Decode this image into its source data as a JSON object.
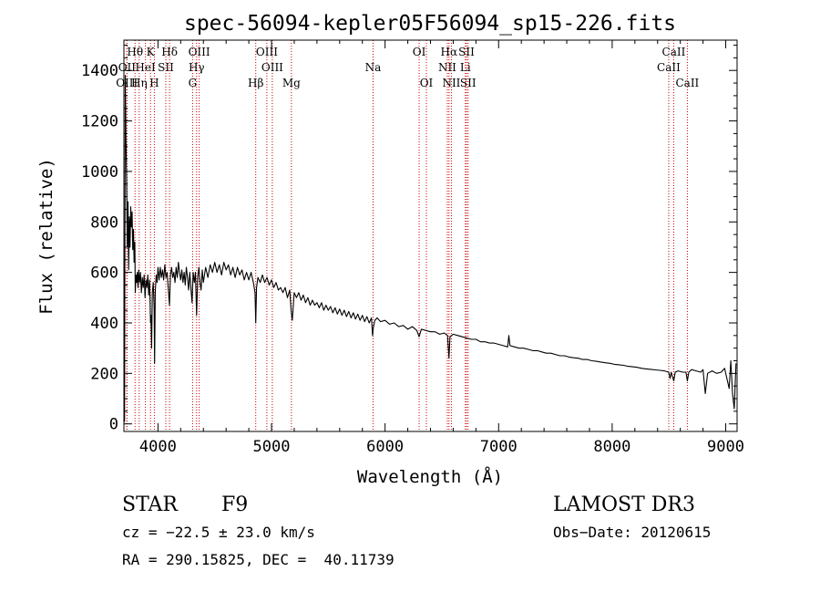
{
  "chart_data": {
    "type": "line",
    "title": "spec-56094-kepler05F56094_sp15-226.fits",
    "xlabel": "Wavelength (Å)",
    "ylabel": "Flux (relative)",
    "xlim": [
      3700,
      9100
    ],
    "ylim": [
      -30,
      1520
    ],
    "x_ticks": [
      4000,
      5000,
      6000,
      7000,
      8000,
      9000
    ],
    "y_ticks": [
      0,
      200,
      400,
      600,
      800,
      1000,
      1200,
      1400
    ],
    "grid": false,
    "series": [
      {
        "name": "flux",
        "color": "#000000",
        "points": [
          [
            3700,
            120
          ],
          [
            3706,
            10
          ],
          [
            3712,
            1380
          ],
          [
            3718,
            1130
          ],
          [
            3724,
            980
          ],
          [
            3730,
            700
          ],
          [
            3736,
            880
          ],
          [
            3742,
            610
          ],
          [
            3748,
            820
          ],
          [
            3754,
            700
          ],
          [
            3760,
            860
          ],
          [
            3766,
            780
          ],
          [
            3772,
            840
          ],
          [
            3778,
            690
          ],
          [
            3784,
            770
          ],
          [
            3790,
            640
          ],
          [
            3796,
            720
          ],
          [
            3800,
            520
          ],
          [
            3806,
            590
          ],
          [
            3812,
            560
          ],
          [
            3818,
            600
          ],
          [
            3824,
            540
          ],
          [
            3830,
            610
          ],
          [
            3838,
            560
          ],
          [
            3846,
            600
          ],
          [
            3854,
            520
          ],
          [
            3862,
            580
          ],
          [
            3870,
            540
          ],
          [
            3878,
            590
          ],
          [
            3886,
            500
          ],
          [
            3894,
            570
          ],
          [
            3902,
            540
          ],
          [
            3910,
            590
          ],
          [
            3918,
            510
          ],
          [
            3926,
            570
          ],
          [
            3934,
            400
          ],
          [
            3938,
            430
          ],
          [
            3944,
            300
          ],
          [
            3950,
            520
          ],
          [
            3958,
            560
          ],
          [
            3966,
            460
          ],
          [
            3970,
            240
          ],
          [
            3976,
            520
          ],
          [
            3984,
            590
          ],
          [
            3992,
            560
          ],
          [
            4000,
            620
          ],
          [
            4010,
            570
          ],
          [
            4020,
            620
          ],
          [
            4030,
            580
          ],
          [
            4040,
            610
          ],
          [
            4050,
            570
          ],
          [
            4060,
            630
          ],
          [
            4070,
            580
          ],
          [
            4080,
            600
          ],
          [
            4090,
            540
          ],
          [
            4101,
            470
          ],
          [
            4110,
            590
          ],
          [
            4120,
            620
          ],
          [
            4130,
            580
          ],
          [
            4140,
            600
          ],
          [
            4150,
            560
          ],
          [
            4160,
            620
          ],
          [
            4170,
            580
          ],
          [
            4180,
            640
          ],
          [
            4190,
            600
          ],
          [
            4200,
            570
          ],
          [
            4210,
            610
          ],
          [
            4220,
            560
          ],
          [
            4230,
            600
          ],
          [
            4240,
            550
          ],
          [
            4250,
            620
          ],
          [
            4260,
            580
          ],
          [
            4270,
            530
          ],
          [
            4280,
            600
          ],
          [
            4290,
            540
          ],
          [
            4300,
            480
          ],
          [
            4310,
            600
          ],
          [
            4320,
            560
          ],
          [
            4330,
            600
          ],
          [
            4340,
            430
          ],
          [
            4350,
            580
          ],
          [
            4360,
            620
          ],
          [
            4370,
            560
          ],
          [
            4380,
            530
          ],
          [
            4390,
            610
          ],
          [
            4400,
            560
          ],
          [
            4420,
            620
          ],
          [
            4440,
            580
          ],
          [
            4460,
            630
          ],
          [
            4480,
            600
          ],
          [
            4500,
            640
          ],
          [
            4520,
            600
          ],
          [
            4540,
            630
          ],
          [
            4560,
            590
          ],
          [
            4580,
            640
          ],
          [
            4600,
            610
          ],
          [
            4620,
            630
          ],
          [
            4640,
            590
          ],
          [
            4660,
            620
          ],
          [
            4680,
            580
          ],
          [
            4700,
            620
          ],
          [
            4720,
            590
          ],
          [
            4740,
            610
          ],
          [
            4760,
            570
          ],
          [
            4780,
            600
          ],
          [
            4800,
            570
          ],
          [
            4820,
            600
          ],
          [
            4840,
            560
          ],
          [
            4855,
            520
          ],
          [
            4861,
            400
          ],
          [
            4868,
            540
          ],
          [
            4880,
            580
          ],
          [
            4900,
            560
          ],
          [
            4920,
            590
          ],
          [
            4940,
            560
          ],
          [
            4960,
            580
          ],
          [
            4980,
            550
          ],
          [
            5000,
            570
          ],
          [
            5020,
            540
          ],
          [
            5040,
            560
          ],
          [
            5060,
            530
          ],
          [
            5080,
            540
          ],
          [
            5100,
            520
          ],
          [
            5120,
            540
          ],
          [
            5140,
            500
          ],
          [
            5160,
            530
          ],
          [
            5172,
            450
          ],
          [
            5183,
            410
          ],
          [
            5200,
            520
          ],
          [
            5220,
            500
          ],
          [
            5240,
            520
          ],
          [
            5260,
            490
          ],
          [
            5280,
            510
          ],
          [
            5300,
            480
          ],
          [
            5320,
            500
          ],
          [
            5340,
            470
          ],
          [
            5360,
            490
          ],
          [
            5380,
            470
          ],
          [
            5400,
            480
          ],
          [
            5420,
            460
          ],
          [
            5440,
            480
          ],
          [
            5460,
            450
          ],
          [
            5480,
            470
          ],
          [
            5500,
            450
          ],
          [
            5520,
            465
          ],
          [
            5540,
            440
          ],
          [
            5560,
            460
          ],
          [
            5580,
            435
          ],
          [
            5600,
            455
          ],
          [
            5620,
            430
          ],
          [
            5640,
            450
          ],
          [
            5660,
            425
          ],
          [
            5680,
            445
          ],
          [
            5700,
            420
          ],
          [
            5720,
            440
          ],
          [
            5740,
            415
          ],
          [
            5760,
            435
          ],
          [
            5780,
            410
          ],
          [
            5800,
            430
          ],
          [
            5820,
            405
          ],
          [
            5840,
            425
          ],
          [
            5860,
            400
          ],
          [
            5880,
            420
          ],
          [
            5890,
            350
          ],
          [
            5896,
            380
          ],
          [
            5910,
            410
          ],
          [
            5930,
            420
          ],
          [
            5960,
            405
          ],
          [
            6000,
            410
          ],
          [
            6040,
            395
          ],
          [
            6080,
            400
          ],
          [
            6120,
            385
          ],
          [
            6160,
            390
          ],
          [
            6200,
            375
          ],
          [
            6240,
            385
          ],
          [
            6280,
            370
          ],
          [
            6300,
            345
          ],
          [
            6320,
            375
          ],
          [
            6360,
            370
          ],
          [
            6400,
            365
          ],
          [
            6440,
            365
          ],
          [
            6480,
            355
          ],
          [
            6520,
            360
          ],
          [
            6550,
            350
          ],
          [
            6563,
            260
          ],
          [
            6572,
            345
          ],
          [
            6600,
            355
          ],
          [
            6640,
            350
          ],
          [
            6680,
            345
          ],
          [
            6720,
            340
          ],
          [
            6760,
            335
          ],
          [
            6800,
            335
          ],
          [
            6840,
            325
          ],
          [
            6880,
            325
          ],
          [
            6920,
            320
          ],
          [
            6960,
            320
          ],
          [
            7000,
            315
          ],
          [
            7040,
            310
          ],
          [
            7080,
            305
          ],
          [
            7090,
            350
          ],
          [
            7100,
            310
          ],
          [
            7140,
            305
          ],
          [
            7180,
            300
          ],
          [
            7220,
            300
          ],
          [
            7260,
            295
          ],
          [
            7300,
            290
          ],
          [
            7340,
            290
          ],
          [
            7380,
            285
          ],
          [
            7420,
            280
          ],
          [
            7460,
            280
          ],
          [
            7500,
            275
          ],
          [
            7540,
            270
          ],
          [
            7580,
            270
          ],
          [
            7620,
            265
          ],
          [
            7660,
            262
          ],
          [
            7700,
            260
          ],
          [
            7740,
            255
          ],
          [
            7780,
            255
          ],
          [
            7820,
            250
          ],
          [
            7860,
            248
          ],
          [
            7900,
            245
          ],
          [
            7940,
            242
          ],
          [
            7980,
            240
          ],
          [
            8020,
            236
          ],
          [
            8060,
            234
          ],
          [
            8100,
            232
          ],
          [
            8140,
            228
          ],
          [
            8180,
            226
          ],
          [
            8220,
            224
          ],
          [
            8260,
            220
          ],
          [
            8300,
            218
          ],
          [
            8340,
            216
          ],
          [
            8380,
            214
          ],
          [
            8420,
            212
          ],
          [
            8460,
            210
          ],
          [
            8498,
            205
          ],
          [
            8510,
            180
          ],
          [
            8520,
            205
          ],
          [
            8542,
            170
          ],
          [
            8555,
            205
          ],
          [
            8580,
            210
          ],
          [
            8620,
            205
          ],
          [
            8650,
            205
          ],
          [
            8662,
            170
          ],
          [
            8675,
            205
          ],
          [
            8700,
            215
          ],
          [
            8740,
            210
          ],
          [
            8780,
            205
          ],
          [
            8800,
            215
          ],
          [
            8820,
            120
          ],
          [
            8840,
            200
          ],
          [
            8880,
            210
          ],
          [
            8920,
            200
          ],
          [
            8960,
            205
          ],
          [
            8990,
            220
          ],
          [
            9010,
            180
          ],
          [
            9030,
            140
          ],
          [
            9045,
            250
          ],
          [
            9060,
            120
          ],
          [
            9075,
            60
          ],
          [
            9090,
            240
          ]
        ]
      }
    ],
    "spectral_lines": [
      {
        "label": "Hθ",
        "x": 3798,
        "row": 1
      },
      {
        "label": "OII",
        "x": 3727,
        "row": 2
      },
      {
        "label": "OIII",
        "x": 3726,
        "row": 3
      },
      {
        "label": "Hη",
        "x": 3835,
        "row": 3
      },
      {
        "label": "HeI",
        "x": 3889,
        "row": 2
      },
      {
        "label": "K",
        "x": 3934,
        "row": 1
      },
      {
        "label": "SII",
        "x": 4069,
        "row": 2
      },
      {
        "label": "H",
        "x": 3968,
        "row": 3
      },
      {
        "label": "Hδ",
        "x": 4102,
        "row": 1
      },
      {
        "label": "OIII",
        "x": 4363,
        "row": 1
      },
      {
        "label": "Hγ",
        "x": 4340,
        "row": 2
      },
      {
        "label": "G",
        "x": 4305,
        "row": 3
      },
      {
        "label": "Hβ",
        "x": 4861,
        "row": 3
      },
      {
        "label": "OIII",
        "x": 4959,
        "row": 1
      },
      {
        "label": "OIII",
        "x": 5007,
        "row": 2
      },
      {
        "label": "Mg",
        "x": 5175,
        "row": 3
      },
      {
        "label": "Na",
        "x": 5894,
        "row": 2
      },
      {
        "label": "OI",
        "x": 6300,
        "row": 1
      },
      {
        "label": "OI",
        "x": 6364,
        "row": 3
      },
      {
        "label": "Hα",
        "x": 6563,
        "row": 1
      },
      {
        "label": "NII",
        "x": 6548,
        "row": 2
      },
      {
        "label": "NII",
        "x": 6584,
        "row": 3
      },
      {
        "label": "SII",
        "x": 6717,
        "row": 1
      },
      {
        "label": "Li",
        "x": 6707,
        "row": 2
      },
      {
        "label": "SII",
        "x": 6731,
        "row": 3
      },
      {
        "label": "CaII",
        "x": 8542,
        "row": 1
      },
      {
        "label": "CaII",
        "x": 8498,
        "row": 2
      },
      {
        "label": "CaII",
        "x": 8662,
        "row": 3
      }
    ]
  },
  "info": {
    "class": "STAR",
    "subclass": "F9",
    "survey": "LAMOST DR3",
    "redshift": "cz = −22.5 ± 23.0 km/s",
    "obs_date": "Obs−Date: 20120615",
    "coords": "RA = 290.15825, DEC =  40.11739"
  }
}
